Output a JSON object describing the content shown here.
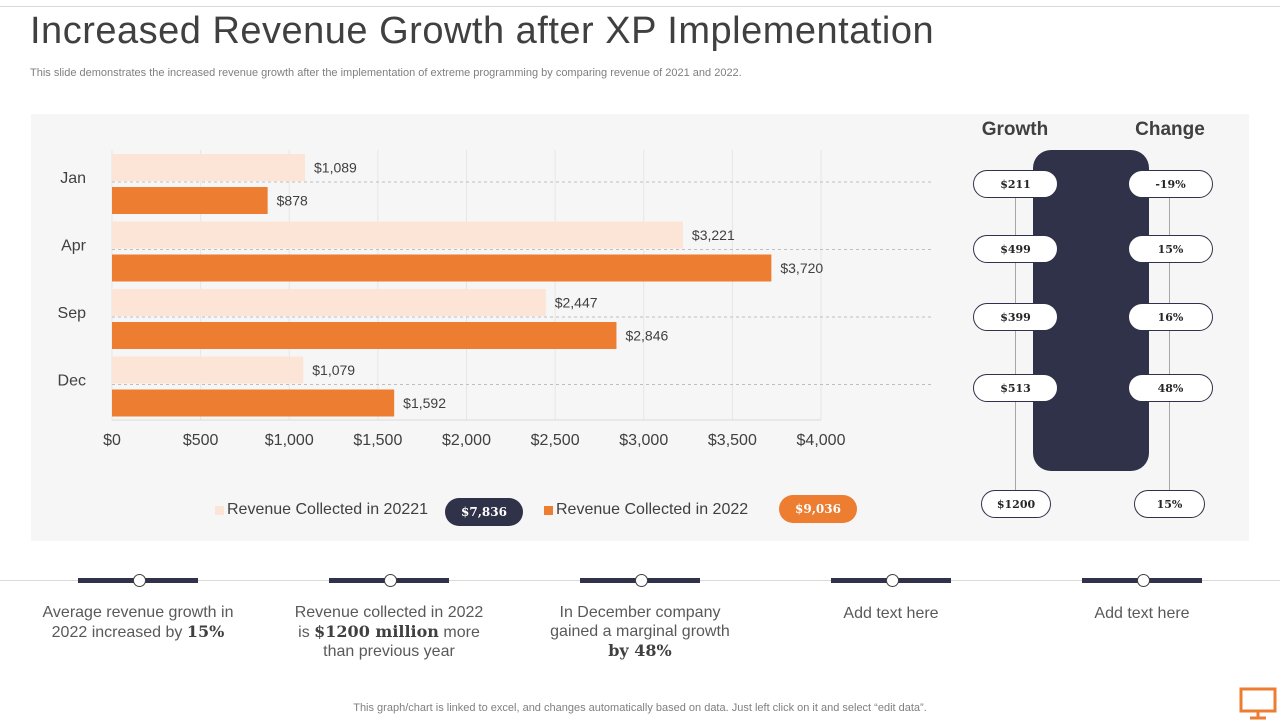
{
  "header": {
    "title": "Increased Revenue Growth after XP Implementation",
    "subtitle": "This slide demonstrates the increased revenue growth after the implementation of extreme programming by comparing revenue of 2021 and 2022."
  },
  "chart_data": {
    "type": "bar",
    "orientation": "horizontal",
    "categories": [
      "Jan",
      "Apr",
      "Sep",
      "Dec"
    ],
    "series": [
      {
        "name": "Revenue Collected in 20221",
        "values": [
          1089,
          3221,
          2447,
          1079
        ],
        "labels": [
          "$1,089",
          "$3,221",
          "$2,447",
          "$1,079"
        ],
        "color": "#fce4d6"
      },
      {
        "name": "Revenue Collected in 2022",
        "values": [
          878,
          3720,
          2846,
          1592
        ],
        "labels": [
          "$878",
          "$3,720",
          "$2,846",
          "$1,592"
        ],
        "color": "#ed7d31"
      }
    ],
    "xlim": [
      0,
      4000
    ],
    "x_ticks": [
      0,
      500,
      1000,
      1500,
      2000,
      2500,
      3000,
      3500,
      4000
    ],
    "x_tick_labels": [
      "$0",
      "$500",
      "$1,000",
      "$1,500",
      "$2,000",
      "$2,500",
      "$3,000",
      "$3,500",
      "$4,000"
    ],
    "grid": true,
    "legend_position": "bottom",
    "xlabel": "",
    "ylabel": ""
  },
  "totals": {
    "series_2021": "$7,836",
    "series_2022": "$9,036"
  },
  "side_table": {
    "growth_header": "Growth",
    "change_header": "Change",
    "rows": [
      {
        "growth": "$211",
        "change": "-19%"
      },
      {
        "growth": "$499",
        "change": "15%"
      },
      {
        "growth": "$399",
        "change": "16%"
      },
      {
        "growth": "$513",
        "change": "48%"
      }
    ],
    "summary": {
      "growth": "$1200",
      "change": "15%"
    }
  },
  "key_points": [
    {
      "pre": "Average revenue  growth in 2022 increased by ",
      "bold": "15%",
      "post": ""
    },
    {
      "pre": "Revenue  collected in 2022 is ",
      "bold": "$1200 million",
      "post": "  more than previous year"
    },
    {
      "pre": "In December company gained a marginal growth ",
      "bold": "by 48%",
      "post": ""
    },
    {
      "pre": "Add text here",
      "bold": "",
      "post": ""
    },
    {
      "pre": "Add text here",
      "bold": "",
      "post": ""
    }
  ],
  "footnote": "This graph/chart is linked to excel,  and changes automatically based on data. Just left click on it and select “edit data”.",
  "colors": {
    "accent": "#ed7d31",
    "light": "#fce4d6",
    "navy": "#2f3249"
  }
}
